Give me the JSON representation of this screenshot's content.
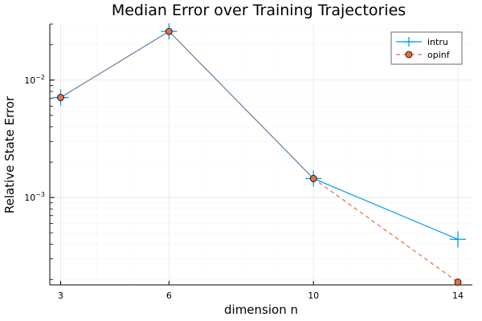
{
  "chart_data": {
    "type": "line",
    "title": "Median Error over Training Trajectories",
    "xlabel": "dimension n",
    "ylabel": "Relative State Error",
    "x": [
      3,
      6,
      10,
      14
    ],
    "xticks": [
      "3",
      "6",
      "10",
      "14"
    ],
    "xlim": [
      2.7,
      14.4
    ],
    "yscale": "log",
    "ylim": [
      0.00018,
      0.03
    ],
    "yticks": [
      {
        "value": 0.01,
        "base": "10",
        "exp": "−2"
      },
      {
        "value": 0.001,
        "base": "10",
        "exp": "−3"
      }
    ],
    "grid": true,
    "legend_position": "top-right",
    "series": [
      {
        "name": "intru",
        "values": [
          0.0071,
          0.026,
          0.00145,
          0.00044
        ],
        "color": "#009AFA",
        "line": "solid",
        "marker": "cross"
      },
      {
        "name": "opinf",
        "values": [
          0.0071,
          0.026,
          0.00145,
          0.00019
        ],
        "color": "#E26F46",
        "line": "dashed",
        "marker": "circle"
      }
    ]
  }
}
